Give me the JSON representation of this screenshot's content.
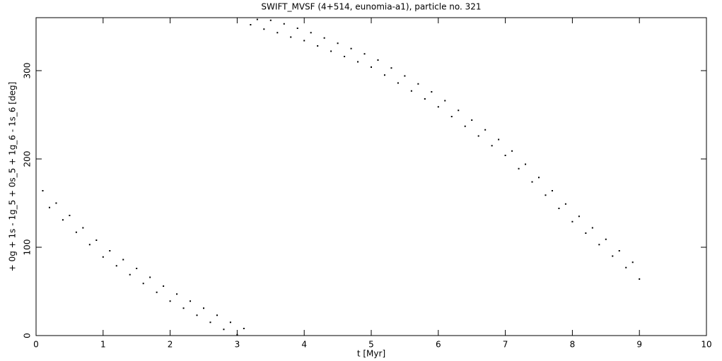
{
  "chart_data": {
    "type": "scatter",
    "title": "SWIFT_MVSF (4+514, eunomia-a1), particle no. 321",
    "xlabel": "t [Myr]",
    "ylabel": "+ 0g + 1s - 1g_5 + 0s_5 + 1g_6 - 1s_6 [deg]",
    "x": [
      0.1,
      0.2,
      0.3,
      0.4,
      0.5,
      0.6,
      0.7,
      0.8,
      0.9,
      1.0,
      1.1,
      1.2,
      1.3,
      1.4,
      1.5,
      1.6,
      1.7,
      1.8,
      1.9,
      2.0,
      2.1,
      2.2,
      2.3,
      2.4,
      2.5,
      2.6,
      2.7,
      2.8,
      2.9,
      3.0,
      3.1,
      3.2,
      3.3,
      3.4,
      3.5,
      3.6,
      3.7,
      3.8,
      3.9,
      4.0,
      4.1,
      4.2,
      4.3,
      4.4,
      4.5,
      4.6,
      4.7,
      4.8,
      4.9,
      5.0,
      5.1,
      5.2,
      5.3,
      5.4,
      5.5,
      5.6,
      5.7,
      5.8,
      5.9,
      6.0,
      6.1,
      6.2,
      6.3,
      6.4,
      6.5,
      6.6,
      6.7,
      6.8,
      6.9,
      7.0,
      7.1,
      7.2,
      7.3,
      7.4,
      7.5,
      7.6,
      7.7,
      7.8,
      7.9,
      8.0,
      8.1,
      8.2,
      8.3,
      8.4,
      8.5,
      8.6,
      8.7,
      8.8,
      8.9,
      9.0
    ],
    "values": [
      164,
      145,
      150,
      131,
      136,
      117,
      122,
      103,
      108,
      89,
      96,
      79,
      86,
      69,
      76,
      59,
      66,
      49,
      56,
      39,
      47,
      31,
      39,
      23,
      31,
      15,
      23,
      7,
      15,
      1,
      8,
      352,
      358,
      347,
      357,
      343,
      353,
      338,
      348,
      334,
      343,
      328,
      337,
      322,
      331,
      316,
      325,
      310,
      319,
      304,
      312,
      295,
      303,
      286,
      294,
      277,
      285,
      268,
      276,
      259,
      266,
      248,
      255,
      237,
      244,
      226,
      233,
      215,
      222,
      204,
      209,
      189,
      194,
      174,
      179,
      159,
      164,
      144,
      149,
      129,
      135,
      116,
      122,
      103,
      109,
      90,
      96,
      77,
      83,
      64
    ],
    "color": "#000000",
    "xlim": [
      0,
      10
    ],
    "xticks": [
      0,
      1,
      2,
      3,
      4,
      5,
      6,
      7,
      8,
      9,
      10
    ],
    "ylim": [
      0,
      360
    ],
    "yticks": [
      0,
      100,
      200,
      300
    ]
  }
}
